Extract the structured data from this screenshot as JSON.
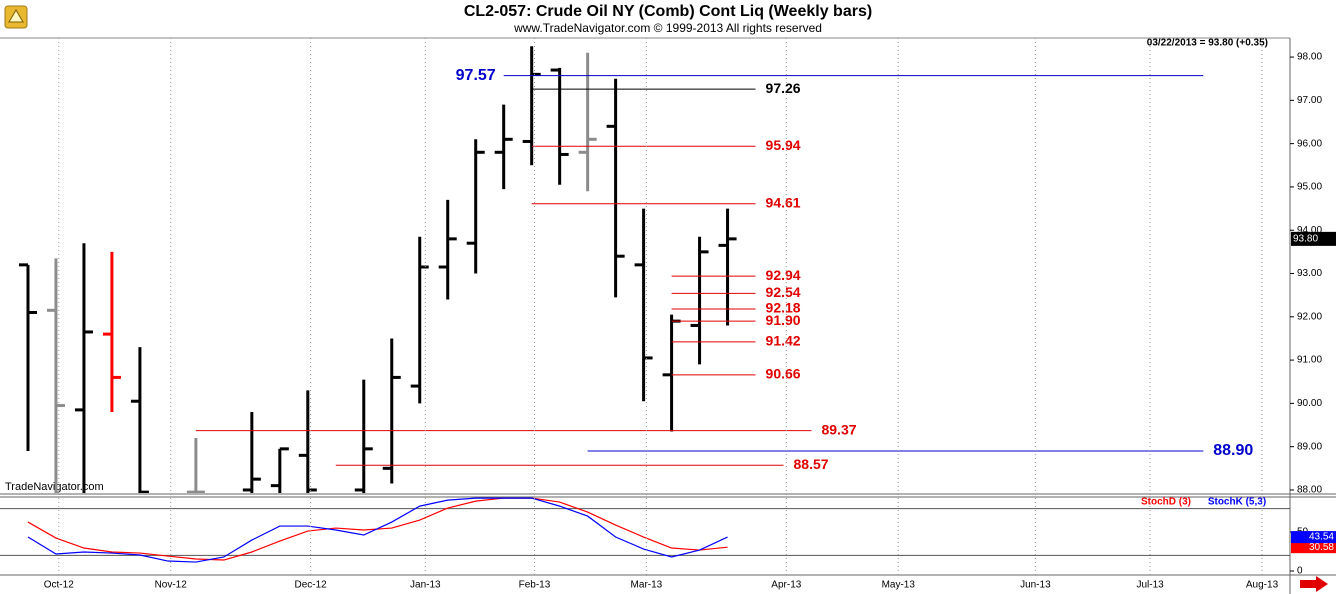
{
  "chart_data": [
    {
      "type": "ohlc",
      "title": "CL2-057:  Crude Oil NY (Comb) Cont Liq  (Weekly bars)",
      "subtitle": "www.TradeNavigator.com © 1999-2013 All rights reserved",
      "watermark": "TradeNavigator.com",
      "header": "03/22/2013 = 93.80 (+0.35)",
      "last_value": {
        "value": 93.8,
        "label": "93.80"
      },
      "x": [
        0,
        1,
        2,
        3,
        4,
        6,
        8,
        9,
        10,
        12,
        13,
        14,
        15,
        16,
        17,
        18,
        19,
        20,
        21,
        22,
        23,
        24,
        25
      ],
      "open": [
        93.2,
        92.15,
        89.85,
        91.6,
        90.05,
        87.95,
        88.0,
        88.1,
        88.8,
        88.0,
        88.5,
        90.4,
        93.15,
        93.7,
        95.8,
        96.05,
        97.7,
        95.8,
        96.4,
        93.2,
        90.66,
        91.8,
        93.65
      ],
      "high": [
        93.2,
        93.35,
        93.7,
        93.5,
        91.3,
        89.2,
        89.8,
        88.95,
        90.3,
        90.55,
        91.5,
        93.85,
        94.7,
        96.1,
        96.9,
        98.25,
        97.75,
        98.1,
        97.5,
        94.5,
        92.05,
        93.85,
        94.5
      ],
      "low": [
        88.9,
        87.93,
        87.93,
        89.8,
        87.93,
        87.93,
        87.93,
        87.93,
        87.93,
        87.93,
        88.15,
        90.0,
        92.4,
        93.0,
        94.95,
        95.5,
        95.05,
        94.9,
        92.45,
        90.05,
        89.35,
        90.9,
        91.8
      ],
      "close": [
        92.1,
        89.95,
        91.65,
        90.6,
        87.95,
        87.95,
        88.25,
        88.95,
        88.0,
        88.95,
        90.6,
        93.15,
        93.8,
        95.8,
        96.1,
        97.6,
        95.75,
        96.1,
        93.4,
        91.05,
        91.9,
        93.5,
        93.8
      ],
      "bar_colors": [
        "#000000",
        "#8c8c8c",
        "#000000",
        "#ff0000",
        "#000000",
        "#8c8c8c",
        "#000000",
        "#000000",
        "#000000",
        "#000000",
        "#000000",
        "#000000",
        "#000000",
        "#000000",
        "#000000",
        "#000000",
        "#000000",
        "#8c8c8c",
        "#000000",
        "#000000",
        "#000000",
        "#000000",
        "#000000"
      ],
      "levels": [
        {
          "value": 97.57,
          "color": "#0000cc",
          "x_start": 17,
          "x_end": 42,
          "label_position": "left"
        },
        {
          "value": 97.26,
          "color": "#000000",
          "x_start": 18,
          "x_end": 26
        },
        {
          "value": 95.94,
          "color": "#e00000",
          "x_start": 18,
          "x_end": 26
        },
        {
          "value": 94.61,
          "color": "#e00000",
          "x_start": 18,
          "x_end": 26
        },
        {
          "value": 92.94,
          "color": "#e00000",
          "x_start": 23,
          "x_end": 26
        },
        {
          "value": 92.54,
          "color": "#e00000",
          "x_start": 23,
          "x_end": 26
        },
        {
          "value": 92.18,
          "color": "#e00000",
          "x_start": 23,
          "x_end": 26
        },
        {
          "value": 91.9,
          "label": "91.90",
          "color": "#e00000",
          "x_start": 23,
          "x_end": 26
        },
        {
          "value": 91.42,
          "color": "#e00000",
          "x_start": 23,
          "x_end": 26
        },
        {
          "value": 90.66,
          "color": "#e00000",
          "x_start": 23,
          "x_end": 26
        },
        {
          "value": 89.37,
          "color": "#e00000",
          "x_start": 6,
          "x_end": 28
        },
        {
          "value": 88.57,
          "color": "#e00000",
          "x_start": 11,
          "x_end": 27
        },
        {
          "value": 88.9,
          "label": "88.90",
          "color": "#0000cc",
          "x_start": 20,
          "x_end": 42
        }
      ],
      "xlim": [
        -1,
        45.1
      ],
      "ylim": [
        87.93,
        98.44
      ],
      "yticks": [
        {
          "value": 98,
          "label": "98.00"
        },
        {
          "value": 97,
          "label": "97.00"
        },
        {
          "value": 96,
          "label": "96.00"
        },
        {
          "value": 95,
          "label": "95.00"
        },
        {
          "value": 94,
          "label": "94.00"
        },
        {
          "value": 93,
          "label": "93.00"
        },
        {
          "value": 92,
          "label": "92.00"
        },
        {
          "value": 91,
          "label": "91.00"
        },
        {
          "value": 90,
          "label": "90.00"
        },
        {
          "value": 89,
          "label": "89.00"
        },
        {
          "value": 88,
          "label": "88.00"
        }
      ]
    },
    {
      "type": "line",
      "x": [
        0,
        1,
        2,
        3,
        4,
        5,
        6,
        7,
        8,
        9,
        10,
        11,
        12,
        13,
        14,
        15,
        16,
        17,
        18,
        19,
        20,
        21,
        22,
        23,
        24,
        25
      ],
      "series": [
        {
          "name": "StochD (3)",
          "color": "#ff0000",
          "values": [
            62.8,
            42.3,
            29.5,
            24.4,
            23,
            19.2,
            15.4,
            14.1,
            24.4,
            38.5,
            51.3,
            55.1,
            52.6,
            55.1,
            65.4,
            80.8,
            89.7,
            93.6,
            93.6,
            88.5,
            75.6,
            59,
            43.6,
            29.5,
            26.9,
            30.58
          ]
        },
        {
          "name": "StochK (5,3)",
          "color": "#0000ff",
          "values": [
            43.6,
            21.8,
            24.4,
            23,
            20.5,
            12.8,
            11.5,
            18,
            39.7,
            57.7,
            57.7,
            52.6,
            46.2,
            62.8,
            83.3,
            91,
            93.6,
            93.6,
            93.6,
            83.3,
            70.5,
            43.6,
            28.2,
            18,
            26.9,
            43.54
          ]
        }
      ],
      "reference_lines": [
        80,
        20
      ],
      "xlim": [
        -1,
        45.1
      ],
      "ylim": [
        0,
        95
      ],
      "yticks": [
        0,
        50
      ],
      "xticks": [
        {
          "value": 1.1,
          "label": "Oct-12"
        },
        {
          "value": 5.1,
          "label": "Nov-12"
        },
        {
          "value": 10.1,
          "label": "Dec-12"
        },
        {
          "value": 14.2,
          "label": "Jan-13"
        },
        {
          "value": 18.1,
          "label": "Feb-13"
        },
        {
          "value": 22.1,
          "label": "Mar-13"
        },
        {
          "value": 27.1,
          "label": "Apr-13"
        },
        {
          "value": 31.1,
          "label": "May-13"
        },
        {
          "value": 36,
          "label": "Jun-13"
        },
        {
          "value": 40.1,
          "label": "Jul-13"
        },
        {
          "value": 44.1,
          "label": "Aug-13"
        }
      ]
    }
  ]
}
